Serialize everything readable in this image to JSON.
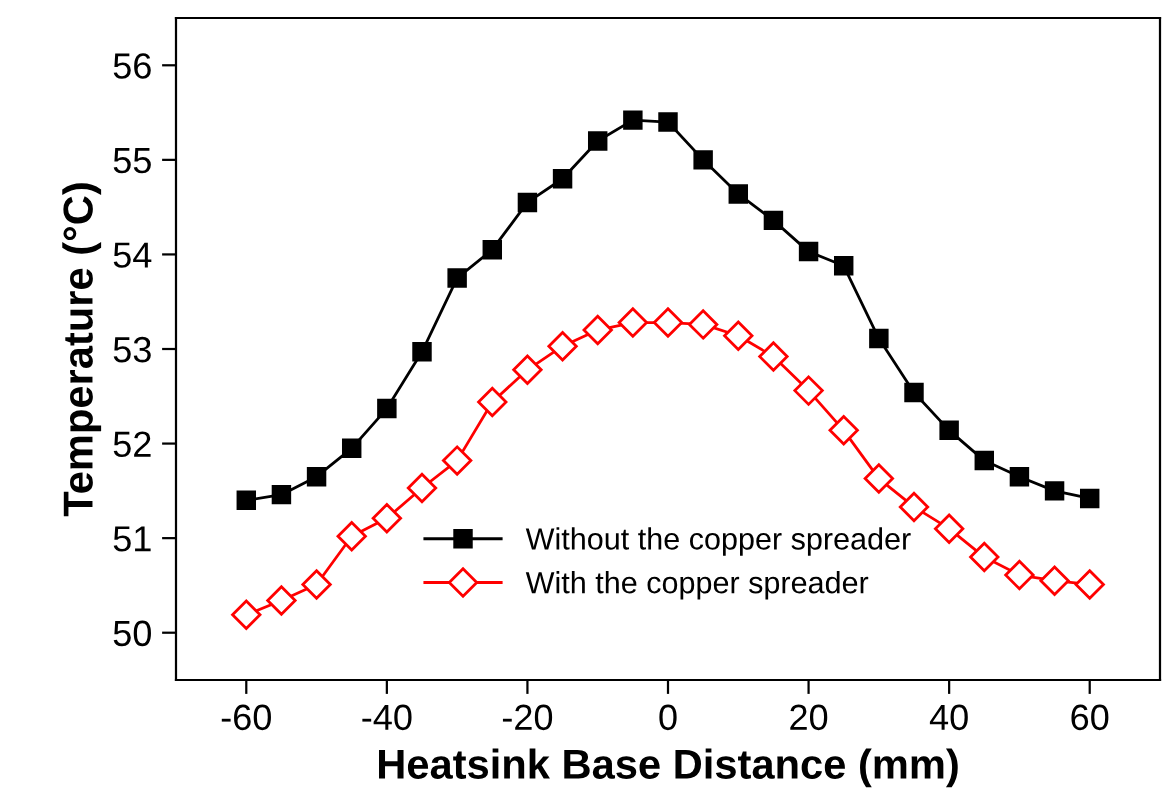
{
  "chart_data": {
    "type": "line",
    "xlabel": "Heatsink Base Distance (mm)",
    "ylabel": "Temperature (°C)",
    "x": [
      -60,
      -55,
      -50,
      -45,
      -40,
      -35,
      -30,
      -25,
      -20,
      -15,
      -10,
      -5,
      0,
      5,
      10,
      15,
      20,
      25,
      30,
      35,
      40,
      45,
      50,
      55,
      60
    ],
    "series": [
      {
        "name": "Without the copper spreader",
        "color": "#000000",
        "marker": "square",
        "values": [
          51.4,
          51.46,
          51.65,
          51.95,
          52.37,
          52.97,
          53.75,
          54.05,
          54.55,
          54.8,
          55.2,
          55.42,
          55.4,
          55.0,
          54.64,
          54.36,
          54.03,
          53.88,
          53.11,
          52.54,
          52.14,
          51.82,
          51.65,
          51.5,
          51.42
        ]
      },
      {
        "name": "With the copper spreader",
        "color": "#ff0000",
        "marker": "diamond",
        "values": [
          50.19,
          50.34,
          50.51,
          51.02,
          51.21,
          51.53,
          51.82,
          52.44,
          52.78,
          53.03,
          53.2,
          53.28,
          53.28,
          53.26,
          53.14,
          52.92,
          52.56,
          52.14,
          51.63,
          51.33,
          51.1,
          50.8,
          50.61,
          50.55,
          50.51
        ]
      }
    ],
    "xlim": [
      -70,
      70
    ],
    "xticks": [
      -60,
      -40,
      -20,
      0,
      20,
      40,
      60
    ],
    "ylim": [
      49.5,
      56.5
    ],
    "yticks": [
      50,
      51,
      52,
      53,
      54,
      55,
      56
    ],
    "grid": false,
    "legend": "bottom",
    "line_style": "solid"
  }
}
